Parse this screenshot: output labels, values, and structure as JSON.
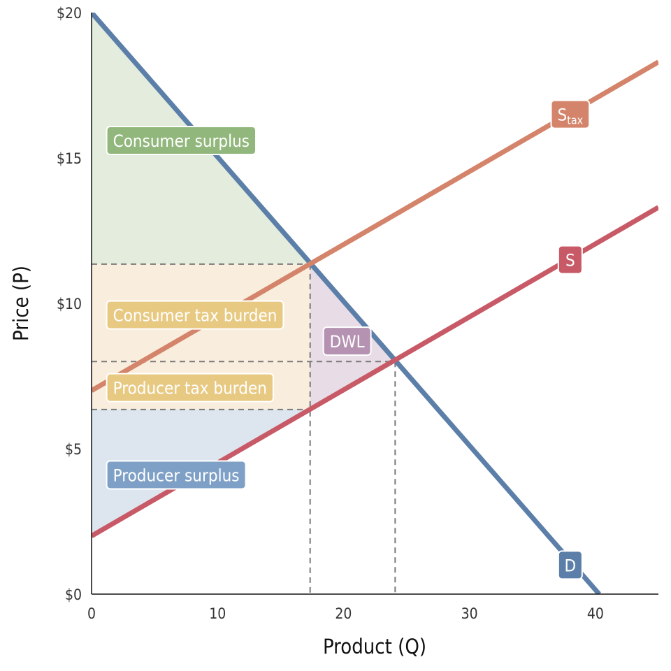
{
  "chart_data": {
    "type": "line",
    "xlabel": "Product (Q)",
    "ylabel": "Price (P)",
    "xlim": [
      0,
      45
    ],
    "ylim": [
      0,
      20
    ],
    "x_ticks": [
      {
        "value": 0,
        "label": "0"
      },
      {
        "value": 10,
        "label": "10"
      },
      {
        "value": 20,
        "label": "20"
      },
      {
        "value": 30,
        "label": "30"
      },
      {
        "value": 40,
        "label": "40"
      }
    ],
    "y_ticks": [
      {
        "value": 0,
        "label": "$0"
      },
      {
        "value": 5,
        "label": "$5"
      },
      {
        "value": 10,
        "label": "$10"
      },
      {
        "value": 15,
        "label": "$15"
      },
      {
        "value": 20,
        "label": "$20"
      }
    ],
    "series": [
      {
        "name": "D",
        "label": "D",
        "color": "#5b7fa8",
        "points": [
          [
            0,
            20
          ],
          [
            40.3,
            0
          ]
        ]
      },
      {
        "name": "S",
        "label": "S",
        "color": "#c75a66",
        "points": [
          [
            0,
            2
          ],
          [
            45,
            13.3
          ]
        ]
      },
      {
        "name": "Stax",
        "label": "S",
        "label_sub": "tax",
        "color": "#d4846a",
        "points": [
          [
            0,
            7
          ],
          [
            45,
            18.3
          ]
        ]
      }
    ],
    "curve_label_positions": {
      "D": {
        "x": 38.0,
        "y": 1.0
      },
      "S": {
        "x": 38.0,
        "y": 11.5
      },
      "Stax": {
        "x": 38.0,
        "y": 16.5
      }
    },
    "areas": [
      {
        "name": "Consumer surplus",
        "label": "Consumer surplus",
        "fill": "#e3ecdd",
        "label_color": "#92b77c",
        "polygon": [
          [
            0,
            20
          ],
          [
            0,
            11.35
          ],
          [
            17.35,
            11.35
          ]
        ],
        "label_at": [
          1.2,
          15.6
        ]
      },
      {
        "name": "Consumer tax burden",
        "label": "Consumer tax burden",
        "fill": "#f9eedd",
        "label_color": "#e8c982",
        "polygon": [
          [
            0,
            11.35
          ],
          [
            17.35,
            11.35
          ],
          [
            17.35,
            8.0
          ],
          [
            0,
            8.0
          ]
        ],
        "label_at": [
          1.2,
          9.6
        ]
      },
      {
        "name": "Producer tax burden",
        "label": "Producer tax burden",
        "fill": "#f9eedd",
        "label_color": "#e8c982",
        "polygon": [
          [
            0,
            8.0
          ],
          [
            17.35,
            8.0
          ],
          [
            17.35,
            6.35
          ],
          [
            0,
            6.35
          ]
        ],
        "label_at": [
          1.2,
          7.1
        ]
      },
      {
        "name": "Producer surplus",
        "label": "Producer surplus",
        "fill": "#dde5ee",
        "label_color": "#7ea0c6",
        "polygon": [
          [
            0,
            6.35
          ],
          [
            17.35,
            6.35
          ],
          [
            0,
            2
          ]
        ],
        "label_at": [
          1.2,
          4.1
        ]
      },
      {
        "name": "DWL",
        "label": "DWL",
        "fill": "#e8dce6",
        "label_color": "#b592b1",
        "polygon": [
          [
            17.35,
            11.35
          ],
          [
            24.1,
            8.0
          ],
          [
            17.35,
            6.35
          ]
        ],
        "label_at": [
          18.4,
          8.7
        ]
      }
    ],
    "dashed_lines": [
      {
        "points": [
          [
            0,
            11.35
          ],
          [
            17.35,
            11.35
          ]
        ]
      },
      {
        "points": [
          [
            0,
            8.0
          ],
          [
            24.1,
            8.0
          ]
        ]
      },
      {
        "points": [
          [
            0,
            6.35
          ],
          [
            17.35,
            6.35
          ]
        ]
      },
      {
        "points": [
          [
            17.35,
            11.35
          ],
          [
            17.35,
            0
          ]
        ]
      },
      {
        "points": [
          [
            24.1,
            8.0
          ],
          [
            24.1,
            0
          ]
        ]
      }
    ]
  }
}
